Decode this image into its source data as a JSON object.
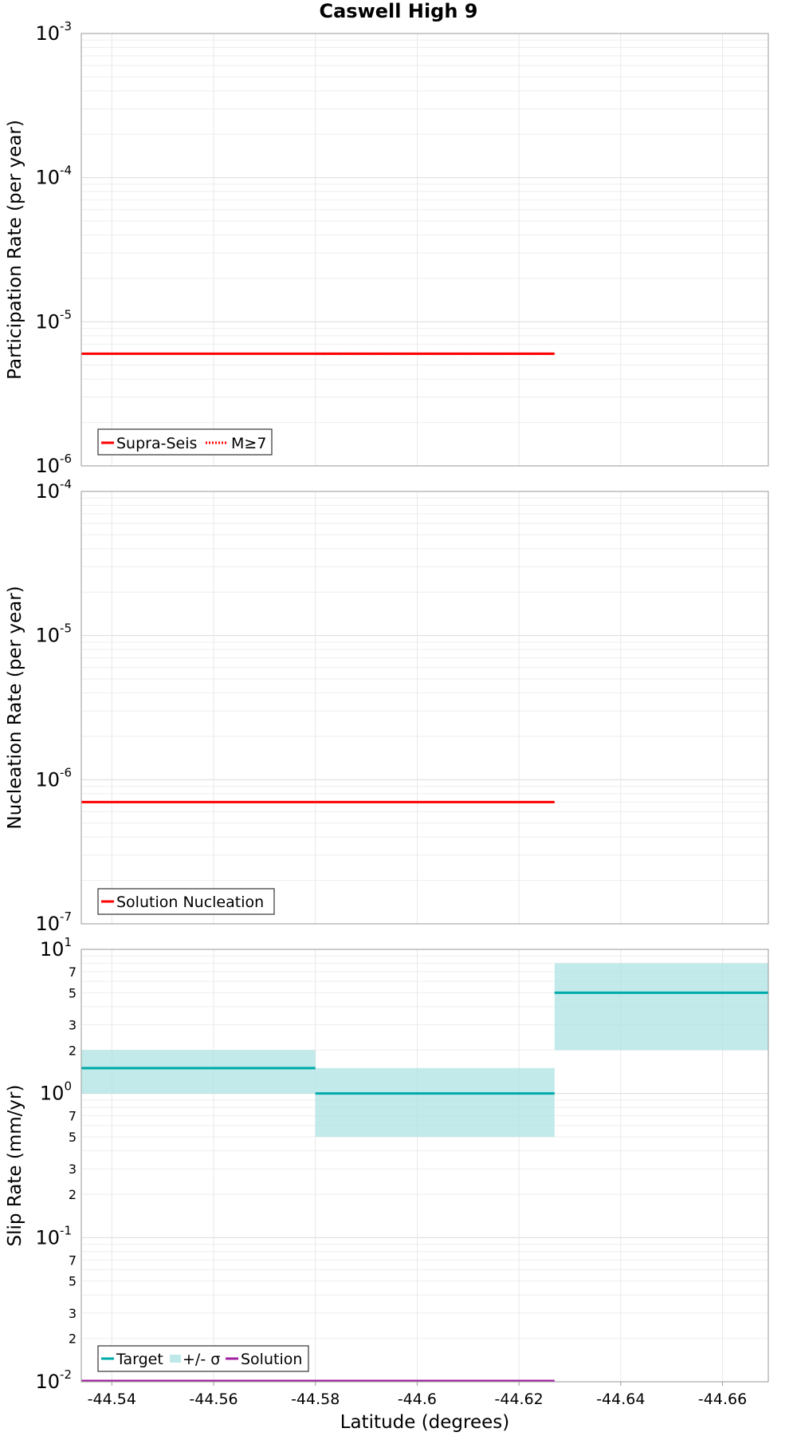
{
  "title": "Caswell High 9",
  "xlabel": "Latitude (degrees)",
  "chart_data": [
    {
      "type": "line",
      "ylabel": "Participation Rate (per year)",
      "yscale": "log",
      "ylim": [
        1e-06,
        0.001
      ],
      "xlim": [
        -44.534,
        -44.669
      ],
      "x_ticks": [
        -44.54,
        -44.56,
        -44.58,
        -44.6,
        -44.62,
        -44.64,
        -44.66
      ],
      "x_tick_labels": [
        "-44.54",
        "-44.56",
        "-44.58",
        "-44.6",
        "-44.62",
        "-44.64",
        "-44.66"
      ],
      "y_tick_labels": [
        "10-6",
        "10-5",
        "10-4",
        "10-3"
      ],
      "legend": [
        "Supra-Seis",
        "M≥7"
      ],
      "series": [
        {
          "name": "Supra-Seis",
          "style": "solid",
          "color": "#ff0000",
          "segments": [
            {
              "x": [
                -44.534,
                -44.58
              ],
              "y": 6e-06
            },
            {
              "x": [
                -44.58,
                -44.627
              ],
              "y": 6e-06
            }
          ]
        },
        {
          "name": "M≥7",
          "style": "dotted",
          "color": "#ff0000",
          "segments": [
            {
              "x": [
                -44.58,
                -44.627
              ],
              "y": 6e-06
            }
          ]
        }
      ]
    },
    {
      "type": "line",
      "ylabel": "Nucleation Rate (per year)",
      "yscale": "log",
      "ylim": [
        1e-07,
        0.0001
      ],
      "xlim": [
        -44.534,
        -44.669
      ],
      "y_tick_labels": [
        "10-7",
        "10-6",
        "10-5",
        "10-4"
      ],
      "legend": [
        "Solution Nucleation"
      ],
      "series": [
        {
          "name": "Solution Nucleation",
          "style": "solid",
          "color": "#ff0000",
          "segments": [
            {
              "x": [
                -44.534,
                -44.58
              ],
              "y": 7e-07
            },
            {
              "x": [
                -44.58,
                -44.627
              ],
              "y": 7e-07
            }
          ]
        }
      ]
    },
    {
      "type": "line",
      "ylabel": "Slip Rate (mm/yr)",
      "yscale": "log",
      "ylim": [
        0.01,
        10
      ],
      "xlim": [
        -44.534,
        -44.669
      ],
      "y_tick_labels": [
        "10-2",
        "10-1",
        "100",
        "101"
      ],
      "y_minor_labels": [
        "2",
        "3",
        "5",
        "7"
      ],
      "legend": [
        "Target",
        "+/- σ",
        "Solution"
      ],
      "series": [
        {
          "name": "Target",
          "style": "solid",
          "color": "#00aaaa",
          "segments": [
            {
              "x": [
                -44.534,
                -44.58
              ],
              "y": 1.5
            },
            {
              "x": [
                -44.58,
                -44.627
              ],
              "y": 1.0
            },
            {
              "x": [
                -44.627,
                -44.669
              ],
              "y": 5.0
            }
          ]
        },
        {
          "name": "+/- σ",
          "style": "band",
          "color": "#aee3e3",
          "bands": [
            {
              "x": [
                -44.534,
                -44.58
              ],
              "low": 1.0,
              "high": 2.0
            },
            {
              "x": [
                -44.58,
                -44.627
              ],
              "low": 0.5,
              "high": 1.5
            },
            {
              "x": [
                -44.627,
                -44.669
              ],
              "low": 2.0,
              "high": 8.0
            }
          ]
        },
        {
          "name": "Solution",
          "style": "solid",
          "color": "#a020a0",
          "segments": [
            {
              "x": [
                -44.534,
                -44.627
              ],
              "y": 0.01
            }
          ]
        }
      ]
    }
  ]
}
